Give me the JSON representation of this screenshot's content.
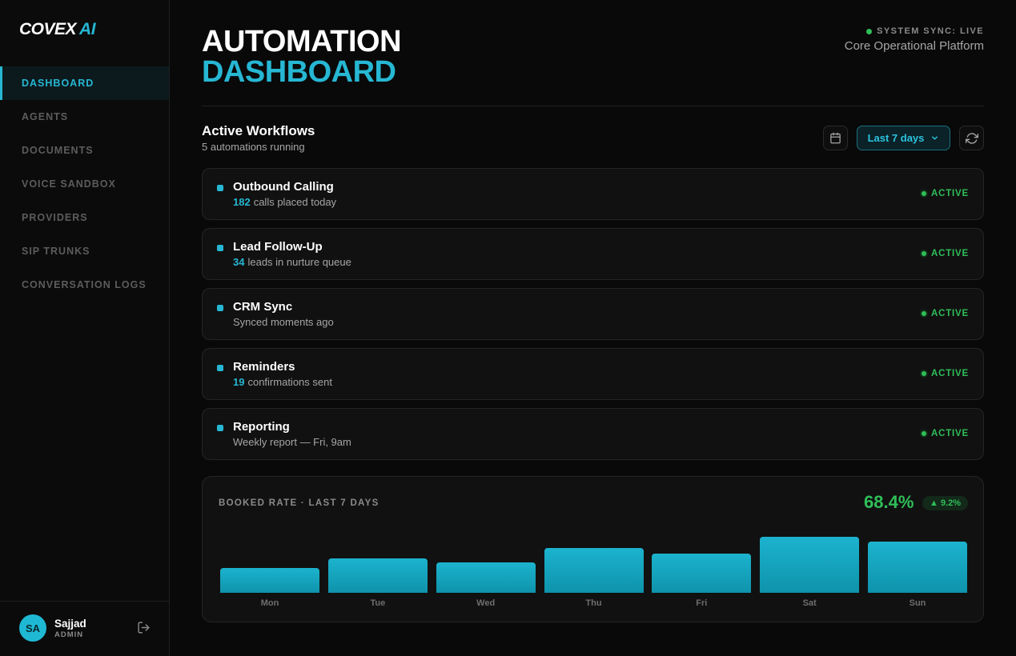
{
  "brand": {
    "name": "COVEX",
    "suffix": "AI",
    "accent": "#26b7d3"
  },
  "sidebar": {
    "items": [
      {
        "label": "DASHBOARD",
        "active": true
      },
      {
        "label": "AGENTS",
        "active": false
      },
      {
        "label": "DOCUMENTS",
        "active": false
      },
      {
        "label": "VOICE SANDBOX",
        "active": false
      },
      {
        "label": "PROVIDERS",
        "active": false
      },
      {
        "label": "SIP TRUNKS",
        "active": false
      },
      {
        "label": "CONVERSATION LOGS",
        "active": false
      }
    ],
    "user": {
      "initials": "SA",
      "name": "Sajjad",
      "role": "ADMIN",
      "logout_icon": "logout-icon"
    }
  },
  "header": {
    "title_line1": "AUTOMATION",
    "title_line2": "DASHBOARD",
    "sync_status": "SYSTEM SYNC: LIVE",
    "platform": "Core Operational Platform"
  },
  "workflows": {
    "title": "Active Workflows",
    "subtitle": "5 automations running",
    "range_label": "Last 7 days",
    "items": [
      {
        "name": "Outbound Calling",
        "count": "182",
        "desc": "calls placed today",
        "status": "ACTIVE"
      },
      {
        "name": "Lead Follow-Up",
        "count": "34",
        "desc": "leads in nurture queue",
        "status": "ACTIVE"
      },
      {
        "name": "CRM Sync",
        "count": "",
        "desc": "Synced moments ago",
        "status": "ACTIVE"
      },
      {
        "name": "Reminders",
        "count": "19",
        "desc": "confirmations sent",
        "status": "ACTIVE"
      },
      {
        "name": "Reporting",
        "count": "",
        "desc": "Weekly report — Fri, 9am",
        "status": "ACTIVE"
      }
    ]
  },
  "booked": {
    "label": "BOOKED RATE · LAST 7 DAYS",
    "rate": "68.4%",
    "delta": "▲ 9.2%"
  },
  "chart_data": {
    "type": "bar",
    "categories": [
      "Mon",
      "Tue",
      "Wed",
      "Thu",
      "Fri",
      "Sat",
      "Sun"
    ],
    "values": [
      45,
      63,
      56,
      82,
      72,
      103,
      94
    ],
    "ylim": [
      0,
      125
    ],
    "title": "BOOKED RATE · LAST 7 DAYS",
    "bar_color": "#1cb3ce"
  }
}
